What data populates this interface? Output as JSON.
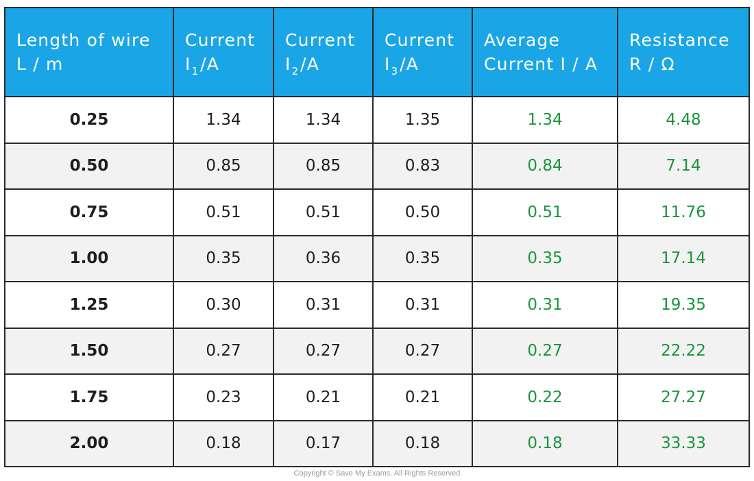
{
  "table": {
    "headers": [
      {
        "line1": "Length of wire",
        "line2": "L / m"
      },
      {
        "line1": "Current",
        "symbol": "I",
        "subscript": "1",
        "unit": "/A"
      },
      {
        "line1": "Current",
        "symbol": "I",
        "subscript": "2",
        "unit": "/A"
      },
      {
        "line1": "Current",
        "symbol": "I",
        "subscript": "3",
        "unit": "/A"
      },
      {
        "line1": "Average",
        "line2": "Current I / A"
      },
      {
        "line1": "Resistance",
        "line2": "R / Ω"
      }
    ],
    "rows": [
      {
        "length": "0.25",
        "i1": "1.34",
        "i2": "1.34",
        "i3": "1.35",
        "avg": "1.34",
        "resistance": "4.48"
      },
      {
        "length": "0.50",
        "i1": "0.85",
        "i2": "0.85",
        "i3": "0.83",
        "avg": "0.84",
        "resistance": "7.14"
      },
      {
        "length": "0.75",
        "i1": "0.51",
        "i2": "0.51",
        "i3": "0.50",
        "avg": "0.51",
        "resistance": "11.76"
      },
      {
        "length": "1.00",
        "i1": "0.35",
        "i2": "0.36",
        "i3": "0.35",
        "avg": "0.35",
        "resistance": "17.14"
      },
      {
        "length": "1.25",
        "i1": "0.30",
        "i2": "0.31",
        "i3": "0.31",
        "avg": "0.31",
        "resistance": "19.35"
      },
      {
        "length": "1.50",
        "i1": "0.27",
        "i2": "0.27",
        "i3": "0.27",
        "avg": "0.27",
        "resistance": "22.22"
      },
      {
        "length": "1.75",
        "i1": "0.23",
        "i2": "0.21",
        "i3": "0.21",
        "avg": "0.22",
        "resistance": "27.27"
      },
      {
        "length": "2.00",
        "i1": "0.18",
        "i2": "0.17",
        "i3": "0.18",
        "avg": "0.18",
        "resistance": "33.33"
      }
    ]
  },
  "colors": {
    "header_background": "#1aa6e6",
    "header_text": "#ffffff",
    "calculated_values": "#19953a",
    "alternate_row": "#f2f2f2"
  },
  "copyright": "Copyright © Save My Exams. All Rights Reserved"
}
